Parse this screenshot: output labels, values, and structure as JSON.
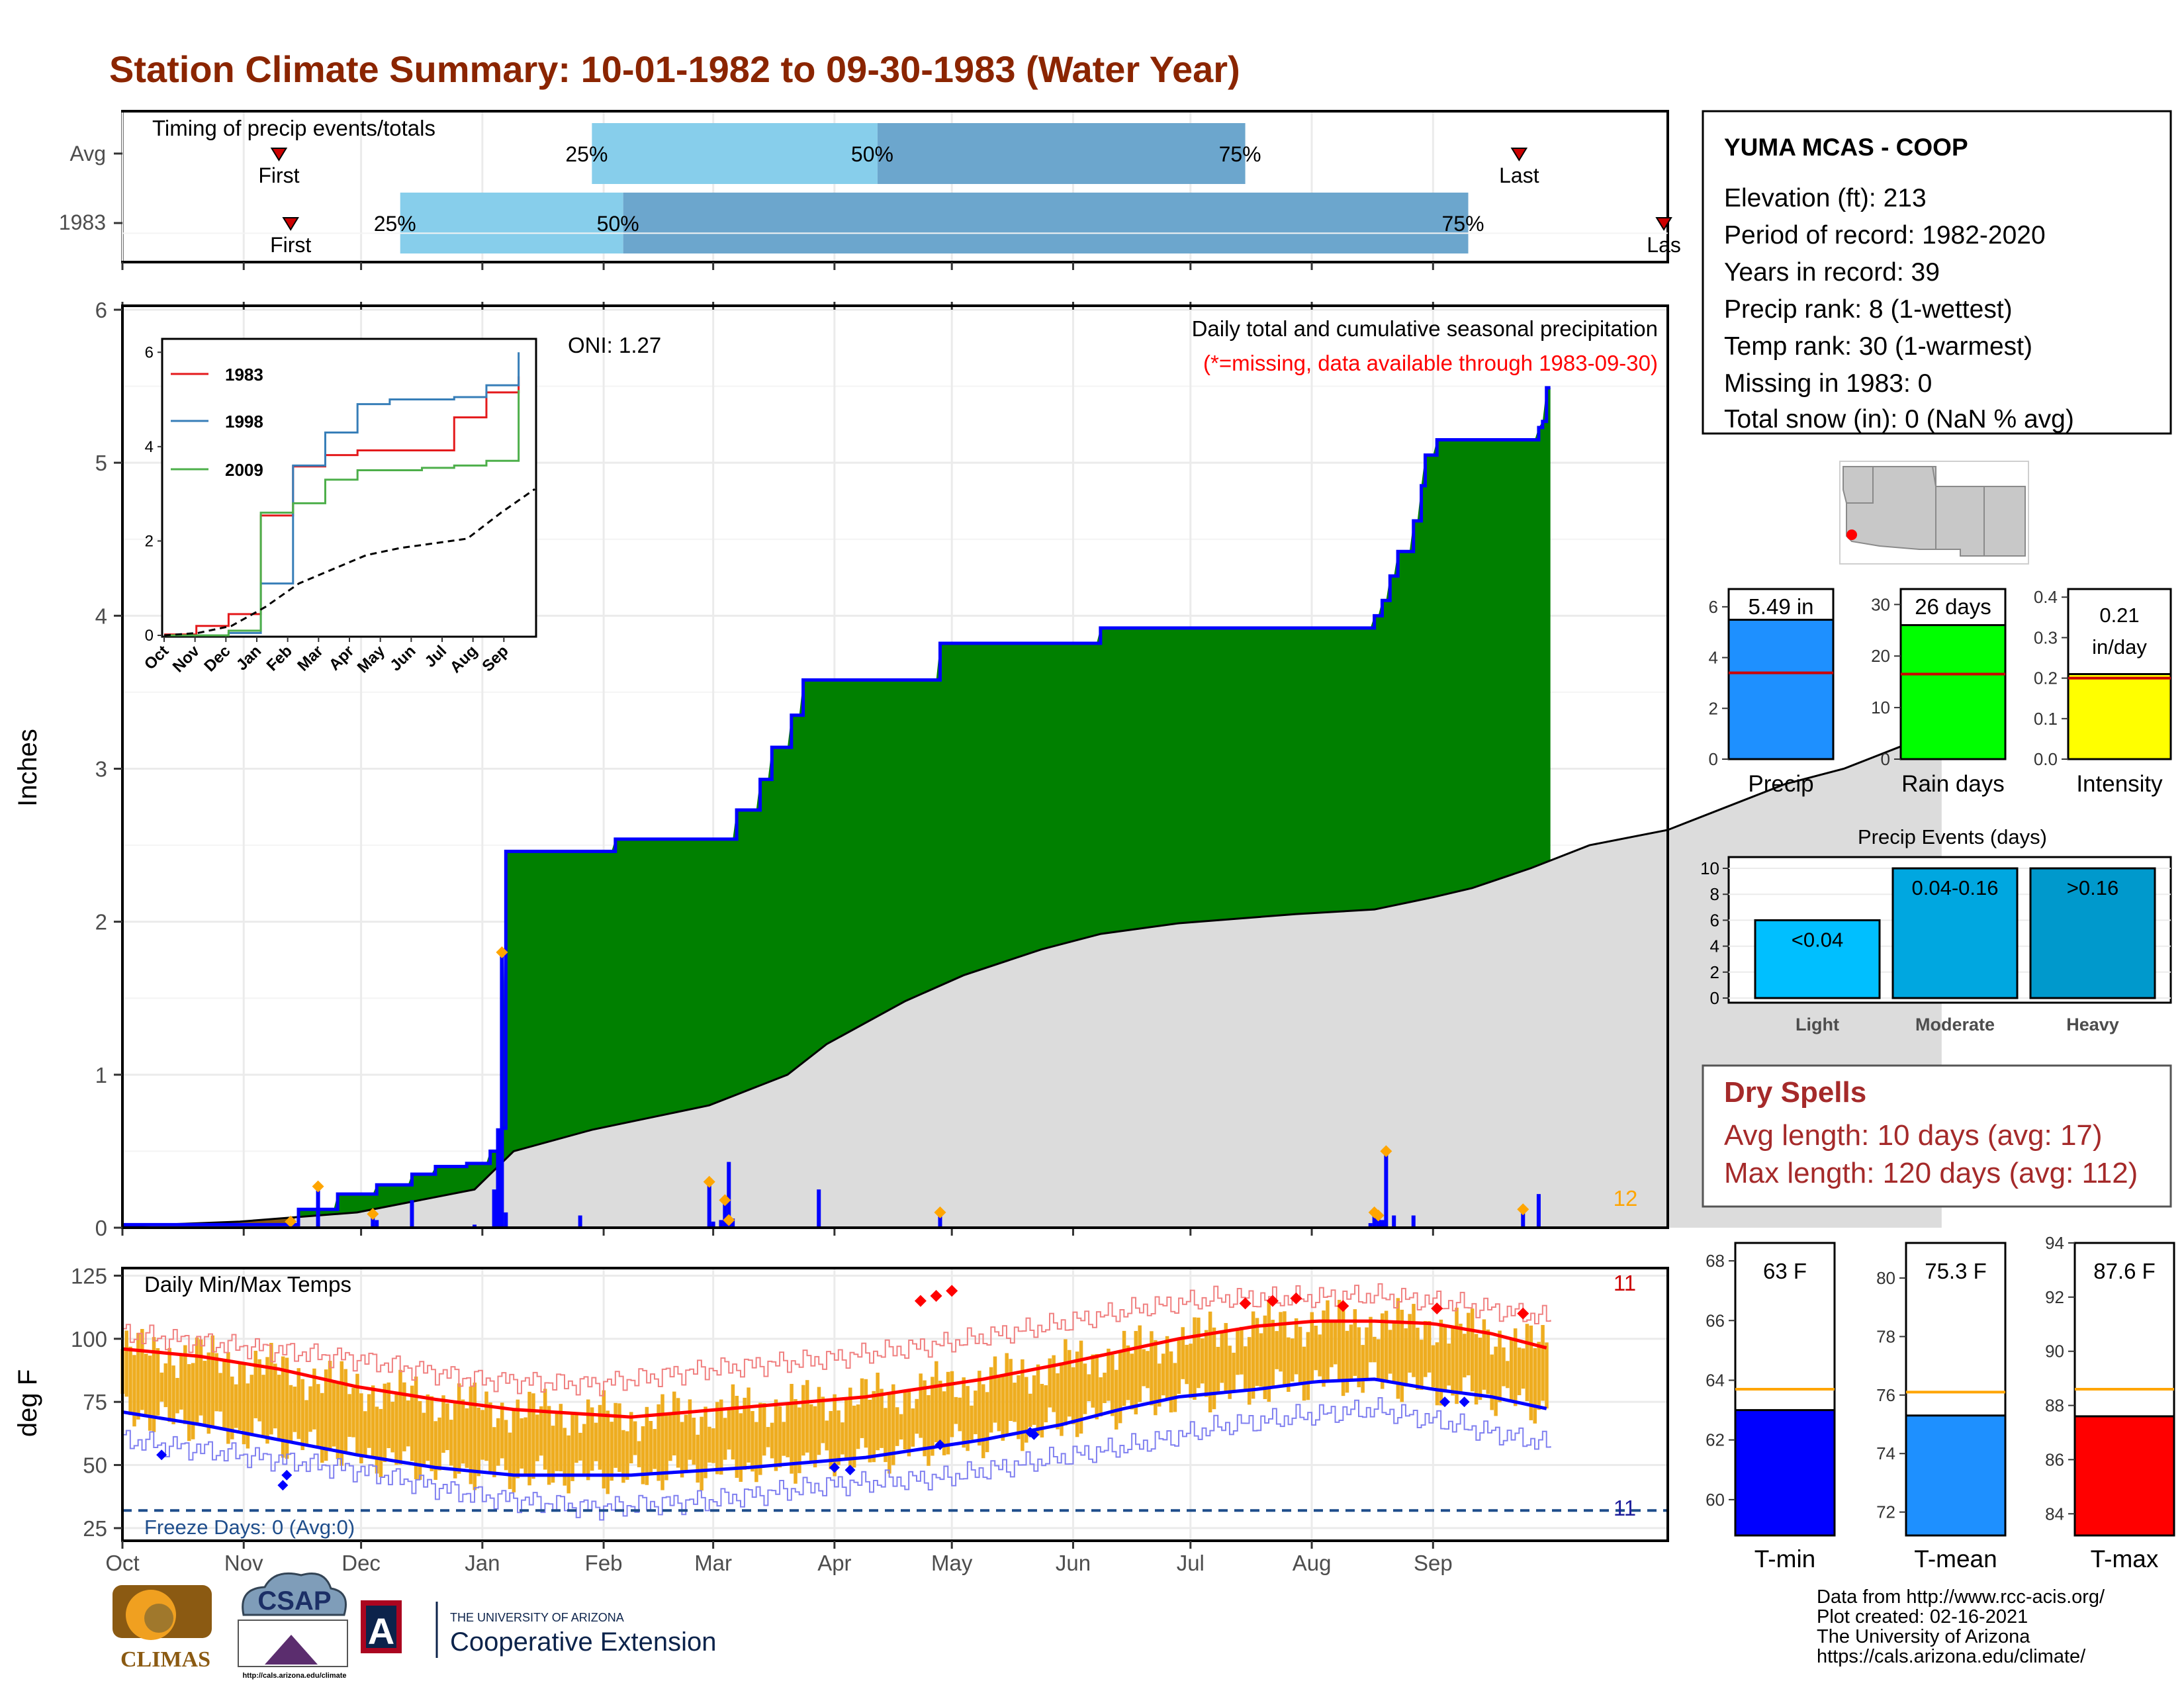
{
  "title": "Station Climate Summary: 10-01-1982 to 09-30-1983 (Water Year)",
  "colors": {
    "title": "#8B2500",
    "q_light": "#87CEEB",
    "q_dark": "#6CA6CD",
    "green": "#008000",
    "gray_fill": "#DCDCDC",
    "brown": "#8B5A12",
    "blue": "#0000FF",
    "orange": "#FFA500",
    "temp_bar": "#EEAD20",
    "red": "#FF0000",
    "navy": "#1F4E8C"
  },
  "timing": {
    "title": "Timing of precip events/totals",
    "rows": [
      {
        "label": "Avg",
        "first_label": "First",
        "last_label": "Last",
        "p25": "25%",
        "p50": "50%",
        "p75": "75%",
        "first_day": 40,
        "q25_day": 120,
        "q50_day": 193,
        "q75_day": 287,
        "last_day": 357
      },
      {
        "label": "1983",
        "first_label": "First",
        "last_label": "Las",
        "p25": "25%",
        "p50": "50%",
        "p75": "75%",
        "first_day": 43,
        "q25_day": 71,
        "q50_day": 128,
        "q75_day": 344,
        "last_day": 394
      }
    ]
  },
  "precip_panel": {
    "ylabel": "Inches",
    "header": "Daily total and cumulative seasonal precipitation",
    "note": "(*=missing, data available through 1983-09-30)",
    "oni": "ONI: 1.27",
    "count_label": "12",
    "y_ticks": [
      "0",
      "1",
      "2",
      "3",
      "4",
      "5",
      "6"
    ]
  },
  "inset": {
    "y_ticks": [
      "0",
      "2",
      "4",
      "6"
    ],
    "x_ticks": [
      "Oct",
      "Nov",
      "Dec",
      "Jan",
      "Feb",
      "Mar",
      "Apr",
      "May",
      "Jun",
      "Jul",
      "Aug",
      "Sep"
    ],
    "legend": [
      "1983",
      "1998",
      "2009"
    ]
  },
  "temp_panel": {
    "ylabel": "deg F",
    "title": "Daily Min/Max Temps",
    "freeze": "Freeze Days: 0 (Avg:0)",
    "count_max": "11",
    "count_min": "11",
    "y_ticks": [
      "25",
      "50",
      "75",
      "100",
      "125"
    ]
  },
  "months": [
    "Oct",
    "Nov",
    "Dec",
    "Jan",
    "Feb",
    "Mar",
    "Apr",
    "May",
    "Jun",
    "Jul",
    "Aug",
    "Sep"
  ],
  "station": {
    "name": "YUMA MCAS - COOP",
    "lines": [
      "Elevation (ft): 213",
      "Period of record: 1982-2020",
      "Years in record: 39",
      "Precip rank: 8 (1-wettest)",
      "Temp rank: 30 (1-warmest)",
      "Missing in 1983: 0",
      "Total snow (in): 0 (NaN % avg)"
    ]
  },
  "mini_bars": [
    {
      "label": "Precip",
      "value_text": "5.49 in",
      "ticks": [
        "0",
        "2",
        "4",
        "6"
      ]
    },
    {
      "label": "Rain days",
      "value_text": "26 days",
      "ticks": [
        "0",
        "10",
        "20",
        "30"
      ]
    },
    {
      "label": "Intensity",
      "value_text": "0.21",
      "value_text2": "in/day",
      "ticks": [
        "0.0",
        "0.1",
        "0.2",
        "0.3",
        "0.4"
      ]
    }
  ],
  "events": {
    "title": "Precip Events (days)",
    "ticks": [
      "0",
      "2",
      "4",
      "6",
      "8",
      "10"
    ],
    "bars": [
      {
        "label": "Light",
        "text": "<0.04"
      },
      {
        "label": "Moderate",
        "text": "0.04-0.16"
      },
      {
        "label": "Heavy",
        "text": ">0.16"
      }
    ]
  },
  "dry": {
    "title": "Dry Spells",
    "avg": "Avg length: 10 days (avg: 17)",
    "max": "Max length: 120 days (avg: 112)"
  },
  "temp_bars": [
    {
      "label": "T-min",
      "value_text": "63 F",
      "ticks": [
        "60",
        "62",
        "64",
        "66",
        "68"
      ]
    },
    {
      "label": "T-mean",
      "value_text": "75.3 F",
      "ticks": [
        "72",
        "74",
        "76",
        "78",
        "80"
      ]
    },
    {
      "label": "T-max",
      "value_text": "87.6 F",
      "ticks": [
        "84",
        "86",
        "88",
        "90",
        "92",
        "94"
      ]
    }
  ],
  "footer": {
    "lines": [
      "Data from http://www.rcc-acis.org/",
      "Plot created: 02-16-2021",
      "The University of Arizona",
      "https://cals.arizona.edu/climate/"
    ]
  },
  "logos": {
    "climas": "CLIMAS",
    "csap": "CSAP",
    "csap_url": "http://cals.arizona.edu/climate",
    "ua_line1": "THE UNIVERSITY OF ARIZONA",
    "ua_line2": "Cooperative Extension",
    "ua_letter": "A"
  },
  "chart_data": [
    {
      "type": "bar",
      "title": "Timing of precip events/totals",
      "categories": [
        "Avg",
        "1983"
      ],
      "series": [
        {
          "name": "25%",
          "values": [
            "1983-01-27",
            "1982-12-10"
          ]
        },
        {
          "name": "50%",
          "values": [
            "1983-04-10",
            "1983-02-05"
          ]
        },
        {
          "name": "75%",
          "values": [
            "1983-07-13",
            "1983-09-09"
          ]
        }
      ],
      "first": [
        "1982-11-09",
        "1982-11-12"
      ],
      "last": [
        "1983-09-22",
        "1983-10-30"
      ]
    },
    {
      "type": "area",
      "title": "Daily total and cumulative seasonal precipitation",
      "ylabel": "Inches",
      "ylim": [
        0,
        6
      ],
      "x_start": "1982-10-01",
      "x_end": "1983-09-30",
      "cumulative_1983": [
        [
          0,
          0.02
        ],
        [
          45,
          0.12
        ],
        [
          55,
          0.22
        ],
        [
          65,
          0.28
        ],
        [
          74,
          0.35
        ],
        [
          80,
          0.4
        ],
        [
          88,
          0.42
        ],
        [
          94,
          0.5
        ],
        [
          97,
          0.65
        ],
        [
          98,
          2.46
        ],
        [
          125,
          2.46
        ],
        [
          126,
          2.54
        ],
        [
          157,
          2.54
        ],
        [
          157,
          2.73
        ],
        [
          163,
          2.93
        ],
        [
          165,
          2.93
        ],
        [
          166,
          3.14
        ],
        [
          171,
          3.35
        ],
        [
          174,
          3.58
        ],
        [
          208,
          3.58
        ],
        [
          209,
          3.82
        ],
        [
          249,
          3.82
        ],
        [
          250,
          3.92
        ],
        [
          318,
          3.92
        ],
        [
          320,
          4.0
        ],
        [
          322,
          4.1
        ],
        [
          324,
          4.26
        ],
        [
          326,
          4.42
        ],
        [
          330,
          4.62
        ],
        [
          332,
          4.85
        ],
        [
          333,
          5.05
        ],
        [
          336,
          5.15
        ],
        [
          360,
          5.15
        ],
        [
          362,
          5.23
        ],
        [
          363,
          5.27
        ],
        [
          364,
          5.49
        ],
        [
          365,
          5.49
        ]
      ],
      "average_cumulative": [
        [
          0,
          0.01
        ],
        [
          30,
          0.04
        ],
        [
          60,
          0.1
        ],
        [
          90,
          0.25
        ],
        [
          100,
          0.5
        ],
        [
          120,
          0.64
        ],
        [
          150,
          0.8
        ],
        [
          170,
          1.0
        ],
        [
          180,
          1.2
        ],
        [
          200,
          1.48
        ],
        [
          215,
          1.65
        ],
        [
          235,
          1.82
        ],
        [
          250,
          1.92
        ],
        [
          270,
          1.99
        ],
        [
          300,
          2.05
        ],
        [
          320,
          2.08
        ],
        [
          335,
          2.16
        ],
        [
          345,
          2.22
        ],
        [
          360,
          2.35
        ],
        [
          375,
          2.5
        ],
        [
          395,
          2.6
        ],
        [
          410,
          2.75
        ],
        [
          425,
          2.9
        ],
        [
          440,
          3.0
        ],
        [
          455,
          3.15
        ],
        [
          462,
          3.22
        ],
        [
          465,
          3.24
        ]
      ],
      "daily": [
        [
          43,
          0.04
        ],
        [
          50,
          0.27
        ],
        [
          64,
          0.09
        ],
        [
          65,
          0.05
        ],
        [
          74,
          0.18
        ],
        [
          90,
          0.02
        ],
        [
          95,
          0.25
        ],
        [
          96,
          0.65
        ],
        [
          97,
          1.8
        ],
        [
          98,
          0.1
        ],
        [
          117,
          0.08
        ],
        [
          150,
          0.3
        ],
        [
          151,
          0.04
        ],
        [
          153,
          0.05
        ],
        [
          154,
          0.18
        ],
        [
          155,
          0.43
        ],
        [
          156,
          0.06
        ],
        [
          178,
          0.25
        ],
        [
          209,
          0.1
        ],
        [
          319,
          0.03
        ],
        [
          320,
          0.08
        ],
        [
          321,
          0.1
        ],
        [
          322,
          0.05
        ],
        [
          323,
          0.5
        ],
        [
          325,
          0.08
        ],
        [
          330,
          0.08
        ],
        [
          358,
          0.12
        ],
        [
          362,
          0.22
        ]
      ]
    },
    {
      "type": "line",
      "title": "",
      "x": [
        "Oct",
        "Nov",
        "Dec",
        "Jan",
        "Feb",
        "Mar",
        "Apr",
        "May",
        "Jun",
        "Jul",
        "Aug",
        "Sep"
      ],
      "ylim": [
        0,
        6
      ],
      "series": [
        {
          "name": "1983",
          "values": [
            0.02,
            0.2,
            0.45,
            2.54,
            3.58,
            3.82,
            3.92,
            3.92,
            3.92,
            4.62,
            5.15,
            5.49
          ]
        },
        {
          "name": "1998",
          "values": [
            0.0,
            0.0,
            0.05,
            1.1,
            3.6,
            4.3,
            4.9,
            5.0,
            5.0,
            5.05,
            5.3,
            6.0
          ]
        },
        {
          "name": "2009",
          "values": [
            0.0,
            0.0,
            0.1,
            2.6,
            2.8,
            3.3,
            3.5,
            3.5,
            3.55,
            3.6,
            3.7,
            5.2
          ]
        },
        {
          "values": [
            0.0,
            0.05,
            0.2,
            0.6,
            1.1,
            1.4,
            1.7,
            1.85,
            1.95,
            2.05,
            2.6,
            3.1
          ]
        }
      ]
    },
    {
      "type": "line",
      "title": "Daily Min/Max Temps",
      "ylabel": "deg F",
      "ylim": [
        20,
        128
      ],
      "avg_max": [
        [
          0,
          96
        ],
        [
          20,
          93
        ],
        [
          40,
          88
        ],
        [
          60,
          81
        ],
        [
          80,
          76
        ],
        [
          100,
          72
        ],
        [
          130,
          69
        ],
        [
          160,
          73
        ],
        [
          190,
          77
        ],
        [
          220,
          84
        ],
        [
          240,
          90
        ],
        [
          255,
          95
        ],
        [
          270,
          100
        ],
        [
          290,
          105
        ],
        [
          305,
          107
        ],
        [
          320,
          107
        ],
        [
          335,
          106
        ],
        [
          350,
          102
        ],
        [
          365,
          96
        ]
      ],
      "avg_min": [
        [
          0,
          71
        ],
        [
          20,
          66
        ],
        [
          40,
          60
        ],
        [
          60,
          54
        ],
        [
          80,
          49
        ],
        [
          100,
          46
        ],
        [
          130,
          46
        ],
        [
          160,
          49
        ],
        [
          190,
          53
        ],
        [
          220,
          60
        ],
        [
          240,
          66
        ],
        [
          255,
          72
        ],
        [
          270,
          77
        ],
        [
          290,
          80
        ],
        [
          305,
          83
        ],
        [
          320,
          84
        ],
        [
          335,
          80
        ],
        [
          350,
          77
        ],
        [
          365,
          72
        ]
      ],
      "record_max": [
        [
          0,
          102
        ],
        [
          30,
          97
        ],
        [
          60,
          92
        ],
        [
          90,
          84
        ],
        [
          120,
          82
        ],
        [
          150,
          88
        ],
        [
          180,
          92
        ],
        [
          210,
          98
        ],
        [
          240,
          106
        ],
        [
          260,
          112
        ],
        [
          280,
          116
        ],
        [
          300,
          116
        ],
        [
          320,
          117
        ],
        [
          340,
          114
        ],
        [
          365,
          108
        ]
      ],
      "record_min": [
        [
          0,
          60
        ],
        [
          30,
          54
        ],
        [
          60,
          48
        ],
        [
          90,
          38
        ],
        [
          120,
          33
        ],
        [
          150,
          36
        ],
        [
          180,
          42
        ],
        [
          210,
          45
        ],
        [
          240,
          53
        ],
        [
          260,
          58
        ],
        [
          280,
          65
        ],
        [
          300,
          69
        ],
        [
          320,
          72
        ],
        [
          340,
          66
        ],
        [
          365,
          58
        ]
      ],
      "freeze_line": 32
    },
    {
      "type": "bar",
      "categories": [
        "Precip",
        "Rain days",
        "Intensity"
      ],
      "values": [
        5.49,
        26,
        0.21
      ],
      "averages": [
        3.4,
        16.5,
        0.2
      ]
    },
    {
      "type": "bar",
      "title": "Precip Events (days)",
      "categories": [
        "Light",
        "Moderate",
        "Heavy"
      ],
      "values": [
        6,
        10,
        10
      ]
    },
    {
      "type": "bar",
      "categories": [
        "T-min",
        "T-mean",
        "T-max"
      ],
      "values": [
        63.0,
        75.3,
        87.6
      ],
      "averages": [
        63.7,
        76.1,
        88.6
      ]
    }
  ]
}
